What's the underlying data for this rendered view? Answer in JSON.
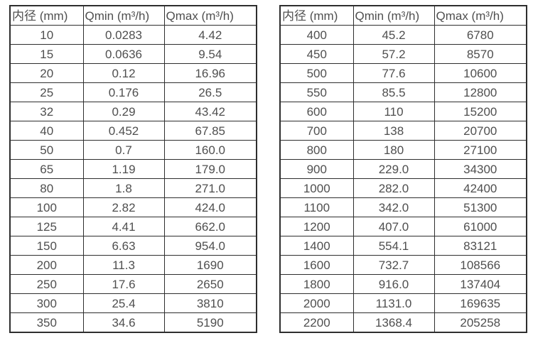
{
  "page": {
    "background_color": "#ffffff",
    "text_color": "#4f4f4f",
    "border_color": "#2e2e2e"
  },
  "tables": [
    {
      "name": "flow-table-small-diameters",
      "headers": [
        "内径 (mm)",
        "Qmin (m³/h)",
        "Qmax (m³/h)"
      ],
      "rows": [
        [
          "10",
          "0.0283",
          "4.42"
        ],
        [
          "15",
          "0.0636",
          "9.54"
        ],
        [
          "20",
          "0.12",
          "16.96"
        ],
        [
          "25",
          "0.176",
          "26.5"
        ],
        [
          "32",
          "0.29",
          "43.42"
        ],
        [
          "40",
          "0.452",
          "67.85"
        ],
        [
          "50",
          "0.7",
          "160.0"
        ],
        [
          "65",
          "1.19",
          "179.0"
        ],
        [
          "80",
          "1.8",
          "271.0"
        ],
        [
          "100",
          "2.82",
          "424.0"
        ],
        [
          "125",
          "4.41",
          "662.0"
        ],
        [
          "150",
          "6.63",
          "954.0"
        ],
        [
          "200",
          "11.3",
          "1690"
        ],
        [
          "250",
          "17.6",
          "2650"
        ],
        [
          "300",
          "25.4",
          "3810"
        ],
        [
          "350",
          "34.6",
          "5190"
        ]
      ]
    },
    {
      "name": "flow-table-large-diameters",
      "headers": [
        "内径 (mm)",
        "Qmin (m³/h)",
        "Qmax (m³/h)"
      ],
      "rows": [
        [
          "400",
          "45.2",
          "6780"
        ],
        [
          "450",
          "57.2",
          "8570"
        ],
        [
          "500",
          "77.6",
          "10600"
        ],
        [
          "550",
          "85.5",
          "12800"
        ],
        [
          "600",
          "110",
          "15200"
        ],
        [
          "700",
          "138",
          "20700"
        ],
        [
          "800",
          "180",
          "27100"
        ],
        [
          "900",
          "229.0",
          "34300"
        ],
        [
          "1000",
          "282.0",
          "42400"
        ],
        [
          "1100",
          "342.0",
          "51300"
        ],
        [
          "1200",
          "407.0",
          "61000"
        ],
        [
          "1400",
          "554.1",
          "83121"
        ],
        [
          "1600",
          "732.7",
          "108566"
        ],
        [
          "1800",
          "916.0",
          "137404"
        ],
        [
          "2000",
          "1131.0",
          "169635"
        ],
        [
          "2200",
          "1368.4",
          "205258"
        ]
      ]
    }
  ]
}
